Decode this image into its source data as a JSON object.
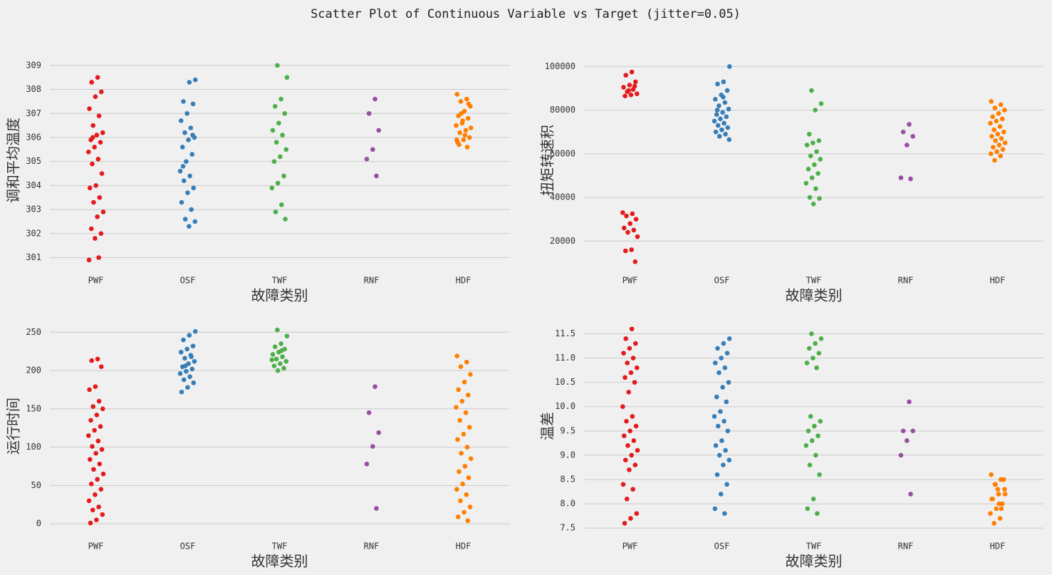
{
  "title": "Scatter Plot of Continuous Variable vs Target (jitter=0.05)",
  "chart_data": [
    {
      "type": "strip",
      "xlabel": "故障类别",
      "ylabel": "调和平均温度",
      "categories": [
        "PWF",
        "OSF",
        "TWF",
        "RNF",
        "HDF"
      ],
      "colors": [
        "#e41a1c",
        "#377eb8",
        "#4daf4a",
        "#984ea3",
        "#ff7f00"
      ],
      "ylim": [
        300.6,
        309.5
      ],
      "yticks": [
        301,
        302,
        303,
        304,
        305,
        306,
        307,
        308,
        309
      ],
      "grid": true,
      "values": [
        [
          308.5,
          308.3,
          307.9,
          307.7,
          307.2,
          306.9,
          306.5,
          306.2,
          306.1,
          305.9,
          305.8,
          305.6,
          305.4,
          305.1,
          304.9,
          304.5,
          304.0,
          303.9,
          303.5,
          303.3,
          302.9,
          302.7,
          302.2,
          302.0,
          301.8,
          300.9,
          301.0,
          306.0
        ],
        [
          308.4,
          308.3,
          307.5,
          307.4,
          307.0,
          306.7,
          306.4,
          306.2,
          306.0,
          305.9,
          305.6,
          305.3,
          305.0,
          304.6,
          304.4,
          304.2,
          303.9,
          303.7,
          303.3,
          303.0,
          302.6,
          302.5,
          302.3,
          304.8,
          306.1
        ],
        [
          309.0,
          308.5,
          307.6,
          307.3,
          307.0,
          306.6,
          306.3,
          306.1,
          305.8,
          305.5,
          305.2,
          305.0,
          304.4,
          304.1,
          303.9,
          303.2,
          302.9,
          302.6
        ],
        [
          307.6,
          307.0,
          306.3,
          305.5,
          305.1,
          304.4
        ],
        [
          307.8,
          307.6,
          307.5,
          307.3,
          307.1,
          306.9,
          306.8,
          306.6,
          306.5,
          306.3,
          306.2,
          306.0,
          305.9,
          305.8,
          305.6,
          307.0,
          306.4,
          306.1,
          305.7,
          307.4,
          306.7,
          305.9
        ]
      ]
    },
    {
      "type": "strip",
      "xlabel": "故障类别",
      "ylabel": "扭矩转速积",
      "categories": [
        "PWF",
        "OSF",
        "TWF",
        "RNF",
        "HDF"
      ],
      "colors": [
        "#e41a1c",
        "#377eb8",
        "#4daf4a",
        "#984ea3",
        "#ff7f00"
      ],
      "ylim": [
        8000,
        106000
      ],
      "yticks": [
        20000,
        40000,
        60000,
        80000,
        100000
      ],
      "grid": true,
      "values": [
        [
          97500,
          96000,
          93000,
          91500,
          90500,
          89500,
          88500,
          87500,
          87000,
          86500,
          91000,
          89000,
          33000,
          32500,
          31500,
          30000,
          28000,
          26000,
          25000,
          24000,
          22000,
          16000,
          15500,
          10500
        ],
        [
          100000,
          93000,
          92000,
          89000,
          87000,
          85000,
          83500,
          82000,
          80500,
          79000,
          78000,
          77000,
          76000,
          75000,
          74000,
          73000,
          72000,
          71000,
          70000,
          69000,
          68000,
          66500,
          86000,
          80000
        ],
        [
          89000,
          83000,
          80000,
          69000,
          66000,
          65000,
          64000,
          61000,
          59000,
          57500,
          55000,
          53000,
          51000,
          49000,
          46500,
          44000,
          40000,
          39500,
          37000
        ],
        [
          73500,
          70000,
          68000,
          64000,
          49000,
          48500
        ],
        [
          84000,
          82500,
          81000,
          80000,
          78500,
          77000,
          76000,
          75000,
          74000,
          72500,
          71000,
          70000,
          69000,
          68000,
          67000,
          66000,
          65000,
          64000,
          63000,
          62000,
          61000,
          60000,
          59000,
          57000
        ]
      ]
    },
    {
      "type": "strip",
      "xlabel": "故障类别",
      "ylabel": "运行时间",
      "categories": [
        "PWF",
        "OSF",
        "TWF",
        "RNF",
        "HDF"
      ],
      "colors": [
        "#e41a1c",
        "#377eb8",
        "#4daf4a",
        "#984ea3",
        "#ff7f00"
      ],
      "ylim": [
        -12,
        267
      ],
      "yticks": [
        0,
        50,
        100,
        150,
        200,
        250
      ],
      "grid": true,
      "values": [
        [
          215,
          213,
          205,
          179,
          175,
          160,
          153,
          150,
          142,
          135,
          127,
          122,
          115,
          108,
          101,
          97,
          92,
          84,
          78,
          71,
          65,
          58,
          52,
          45,
          38,
          30,
          22,
          18,
          12,
          5,
          1
        ],
        [
          251,
          246,
          240,
          232,
          228,
          224,
          220,
          216,
          212,
          209,
          205,
          202,
          199,
          196,
          192,
          188,
          184,
          178,
          172,
          218,
          206
        ],
        [
          253,
          245,
          235,
          231,
          228,
          224,
          221,
          218,
          215,
          212,
          209,
          206,
          203,
          200,
          214,
          226
        ],
        [
          179,
          145,
          119,
          101,
          78,
          20
        ],
        [
          219,
          211,
          205,
          195,
          185,
          175,
          168,
          160,
          152,
          145,
          135,
          126,
          117,
          110,
          100,
          92,
          85,
          75,
          68,
          60,
          52,
          45,
          38,
          30,
          22,
          15,
          9,
          4
        ]
      ]
    },
    {
      "type": "strip",
      "xlabel": "故障类别",
      "ylabel": "温差",
      "categories": [
        "PWF",
        "OSF",
        "TWF",
        "RNF",
        "HDF"
      ],
      "colors": [
        "#e41a1c",
        "#377eb8",
        "#4daf4a",
        "#984ea3",
        "#ff7f00"
      ],
      "ylim": [
        7.4,
        11.8
      ],
      "yticks": [
        7.5,
        {
          "value": 8,
          "label": "8.0"
        },
        8.5,
        {
          "value": 9,
          "label": "9.0"
        },
        9.5,
        {
          "value": 10,
          "label": "10.0"
        },
        10.5,
        {
          "value": 11,
          "label": "11.0"
        },
        11.5
      ],
      "grid": true,
      "values": [
        [
          11.6,
          11.4,
          11.3,
          11.2,
          11.1,
          11.0,
          10.9,
          10.8,
          10.7,
          10.6,
          10.5,
          10.3,
          10.0,
          9.8,
          9.7,
          9.6,
          9.5,
          9.4,
          9.3,
          9.2,
          9.1,
          9.0,
          8.9,
          8.8,
          8.7,
          8.4,
          8.3,
          8.1,
          7.8,
          7.7,
          7.6
        ],
        [
          11.4,
          11.3,
          11.2,
          11.1,
          11.0,
          10.9,
          10.8,
          10.7,
          10.5,
          10.4,
          10.2,
          10.1,
          9.9,
          9.8,
          9.7,
          9.6,
          9.5,
          9.3,
          9.2,
          9.1,
          9.0,
          8.9,
          8.8,
          8.6,
          8.4,
          8.2,
          7.9,
          7.8
        ],
        [
          11.5,
          11.4,
          11.3,
          11.2,
          11.1,
          11.0,
          10.9,
          10.8,
          9.8,
          9.7,
          9.6,
          9.5,
          9.4,
          9.3,
          9.2,
          9.0,
          8.8,
          8.6,
          8.1,
          7.9,
          7.8
        ],
        [
          10.1,
          9.5,
          9.5,
          9.3,
          9.0,
          8.2
        ],
        [
          8.6,
          8.5,
          8.4,
          8.3,
          8.2,
          8.1,
          8.0,
          7.9,
          7.8,
          7.7,
          7.6,
          8.5,
          8.3,
          8.1,
          7.9,
          8.4,
          8.2,
          8.0
        ]
      ]
    }
  ]
}
